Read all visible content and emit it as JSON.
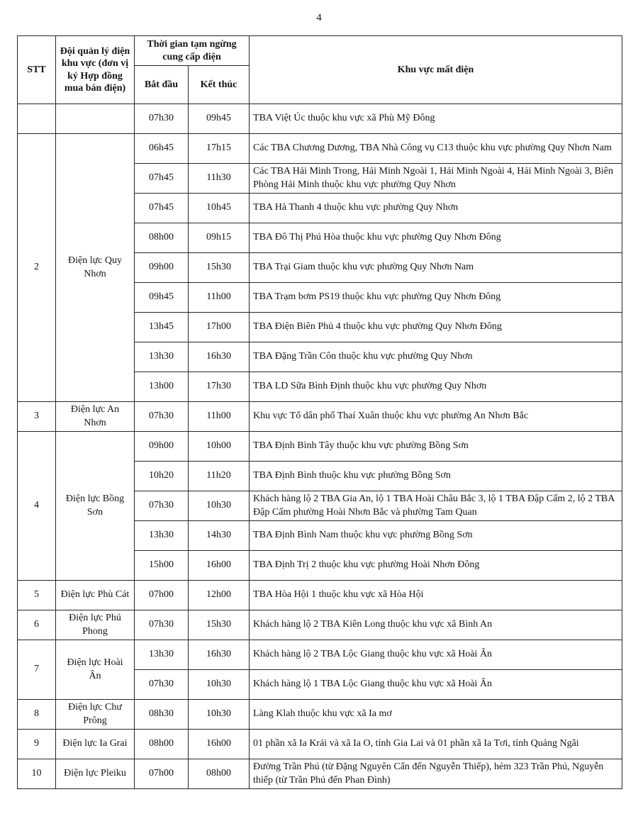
{
  "page": {
    "number": "4"
  },
  "table": {
    "headers": {
      "stt": "STT",
      "unit": "Đội quản lý điện khu vực (đơn vị ký Hợp đồng mua bán điện)",
      "time_group": "Thời gian tạm ngừng cung cấp điện",
      "start": "Bắt đầu",
      "end": "Kết thúc",
      "area": "Khu vực mất điện"
    },
    "groups": [
      {
        "stt": "",
        "unit": "",
        "rows": [
          {
            "start": "07h30",
            "end": "09h45",
            "area": "TBA Việt Úc thuộc khu vực xã Phù Mỹ Đông"
          }
        ]
      },
      {
        "stt": "2",
        "unit": "Điện lực Quy\nNhơn",
        "rows": [
          {
            "start": "06h45",
            "end": "17h15",
            "area": "Các TBA Chương Dương, TBA Nhà Công vụ C13 thuộc khu vực phường Quy Nhơn Nam"
          },
          {
            "start": "07h45",
            "end": "11h30",
            "area": "Các TBA Hải Minh Trong, Hải Minh Ngoài 1, Hải Minh Ngoài 4, Hải Minh Ngoài 3, Biên Phòng Hải Minh thuộc khu vực phường Quy Nhơn"
          },
          {
            "start": "07h45",
            "end": "10h45",
            "area": "TBA Hà Thanh 4 thuộc khu vực phường Quy Nhơn"
          },
          {
            "start": "08h00",
            "end": "09h15",
            "area": "TBA Đô Thị Phú Hòa thuộc khu vực phường Quy Nhơn Đông"
          },
          {
            "start": "09h00",
            "end": "15h30",
            "area": "TBA Trại Giam thuộc khu vực phường Quy Nhơn Nam"
          },
          {
            "start": "09h45",
            "end": "11h00",
            "area": "TBA Trạm bơm PS19 thuộc khu vực phường Quy Nhơn Đông"
          },
          {
            "start": "13h45",
            "end": "17h00",
            "area": "TBA Điện Biên Phủ 4 thuộc khu vực phường Quy Nhơn Đông"
          },
          {
            "start": "13h30",
            "end": "16h30",
            "area": "TBA Đặng Trần Côn thuộc khu vực phường Quy Nhơn"
          },
          {
            "start": "13h00",
            "end": "17h30",
            "area": "TBA LD Sữa Bình Định thuộc khu vực phường Quy Nhơn"
          }
        ]
      },
      {
        "stt": "3",
        "unit": "Điện lực An\nNhơn",
        "rows": [
          {
            "start": "07h30",
            "end": "11h00",
            "area": "Khu vực Tổ dân phố Thaí Xuân thuộc khu vực phường An Nhơn Bắc"
          }
        ]
      },
      {
        "stt": "4",
        "unit": "Điện lực Bồng\nSơn",
        "rows": [
          {
            "start": "09h00",
            "end": "10h00",
            "area": "TBA Định Bình Tây thuộc khu vực phường Bồng Sơn"
          },
          {
            "start": "10h20",
            "end": "11h20",
            "area": "TBA Định Bình thuộc khu vực phường Bồng Sơn"
          },
          {
            "start": "07h30",
            "end": "10h30",
            "area": "Khách hàng lộ 2 TBA Gia An, lộ 1 TBA Hoài Châu Bắc 3, lộ 1 TBA Đập Cấm 2, lộ 2 TBA Đập Cấm phường Hoài Nhơn Bắc và phường Tam Quan"
          },
          {
            "start": "13h30",
            "end": "14h30",
            "area": "TBA Định Bình Nam thuộc khu vực phường Bồng Sơn"
          },
          {
            "start": "15h00",
            "end": "16h00",
            "area": "TBA Định Trị 2 thuộc khu vực phường Hoài Nhơn Đông"
          }
        ]
      },
      {
        "stt": "5",
        "unit": "Điện lực Phù Cát",
        "rows": [
          {
            "start": "07h00",
            "end": "12h00",
            "area": "TBA Hòa Hội 1 thuộc khu vực xã Hòa Hội"
          }
        ]
      },
      {
        "stt": "6",
        "unit": "Điện lực Phú\nPhong",
        "rows": [
          {
            "start": "07h30",
            "end": "15h30",
            "area": "Khách hàng lộ 2 TBA Kiên Long thuộc khu vực xã Bình An"
          }
        ]
      },
      {
        "stt": "7",
        "unit": "Điện lực Hoài\nÂn",
        "rows": [
          {
            "start": "13h30",
            "end": "16h30",
            "area": "Khách hàng lộ 2 TBA Lộc Giang thuộc khu vực xã Hoài Ân"
          },
          {
            "start": "07h30",
            "end": "10h30",
            "area": "Khách hàng lộ 1 TBA Lộc Giang thuộc khu vực xã Hoài Ân"
          }
        ]
      },
      {
        "stt": "8",
        "unit": "Điện lực Chư\nPrông",
        "rows": [
          {
            "start": "08h30",
            "end": "10h30",
            "area": "Làng Klah thuộc khu vực xã Ia mơ"
          }
        ]
      },
      {
        "stt": "9",
        "unit": "Điện lực Ia Grai",
        "rows": [
          {
            "start": "08h00",
            "end": "16h00",
            "area": "01 phần xã Ia Krái và xã Ia O, tỉnh Gia Lai và 01 phần xã Ia Tơi, tỉnh Quảng Ngãi"
          }
        ]
      },
      {
        "stt": "10",
        "unit": "Điện lực Pleiku",
        "rows": [
          {
            "start": "07h00",
            "end": "08h00",
            "area": "Đường Trần Phú (từ Đặng Nguyên Cẩn đến Nguyễn Thiếp), hẻm 323 Trần Phú, Nguyễn thiếp (từ Trần Phú đến Phan Đình)"
          }
        ]
      }
    ]
  }
}
